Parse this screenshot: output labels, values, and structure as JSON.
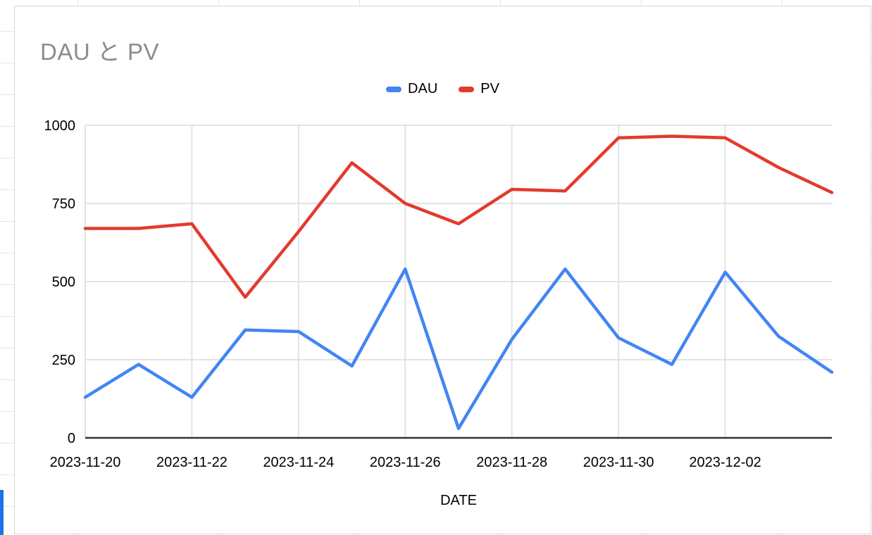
{
  "chart_title": "DAU と PV",
  "x_axis_title": "DATE",
  "legend": {
    "items": [
      {
        "label": "DAU"
      },
      {
        "label": "PV"
      }
    ]
  },
  "colors": {
    "dau_line": "#4285f4",
    "pv_line": "#e23b2d",
    "title_text": "#8c8c8c",
    "gridline": "#e3e3e3",
    "axis_line": "#333333",
    "card_border": "#d4d4d4",
    "selection_strip": "#1a73e8"
  },
  "chart_data": {
    "type": "line",
    "title": "DAU と PV",
    "xlabel": "DATE",
    "ylabel": "",
    "x": [
      "2023-11-20",
      "2023-11-21",
      "2023-11-22",
      "2023-11-23",
      "2023-11-24",
      "2023-11-25",
      "2023-11-26",
      "2023-11-27",
      "2023-11-28",
      "2023-11-29",
      "2023-11-30",
      "2023-12-01",
      "2023-12-02",
      "2023-12-03",
      "2023-12-04"
    ],
    "series": [
      {
        "name": "DAU",
        "color": "#4285f4",
        "values": [
          130,
          235,
          130,
          345,
          340,
          230,
          540,
          30,
          315,
          540,
          320,
          235,
          530,
          325,
          210
        ]
      },
      {
        "name": "PV",
        "color": "#e23b2d",
        "values": [
          670,
          670,
          685,
          450,
          660,
          880,
          750,
          685,
          795,
          790,
          960,
          965,
          960,
          865,
          785
        ]
      }
    ],
    "ylim": [
      0,
      1000
    ],
    "yticks": [
      0,
      250,
      500,
      750,
      1000
    ],
    "xtick_labels": [
      "2023-11-20",
      "2023-11-22",
      "2023-11-24",
      "2023-11-26",
      "2023-11-28",
      "2023-11-30",
      "2023-12-02"
    ],
    "grid": true,
    "legend_position": "top"
  }
}
